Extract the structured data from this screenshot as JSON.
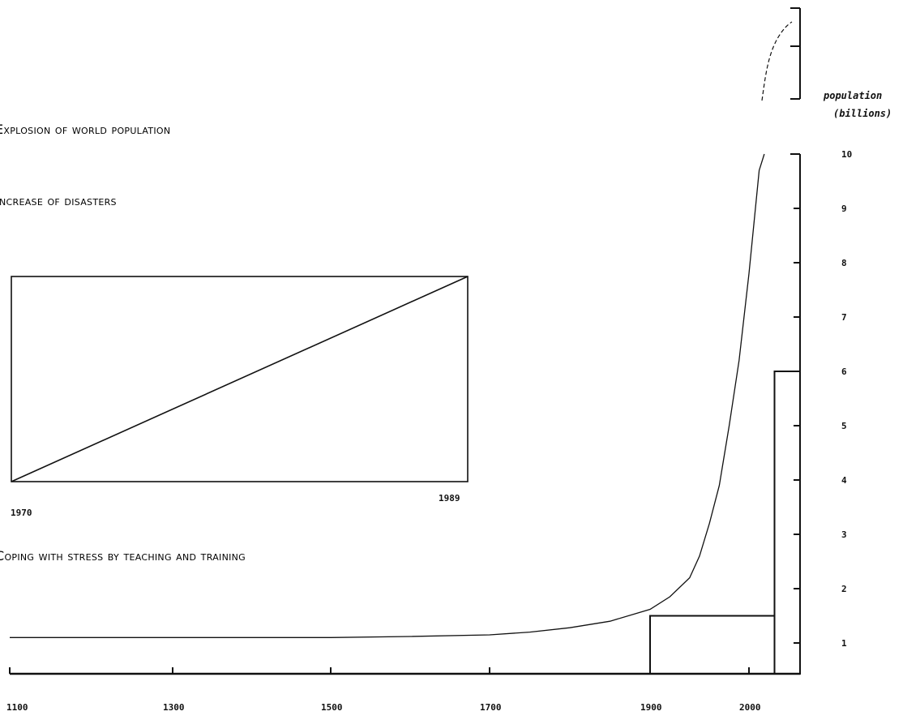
{
  "headings": {
    "explosion": "Explosion of world population",
    "disasters": "Increase of disasters",
    "coping": "Coping with stress by teaching and training"
  },
  "chart_data": [
    {
      "type": "line",
      "title": "Explosion of world population",
      "ylabel": [
        "population",
        "(billions)"
      ],
      "x_ticks": [
        1100,
        1300,
        1500,
        1700,
        1900,
        2000
      ],
      "y_ticks": [
        1,
        2,
        3,
        4,
        5,
        6,
        7,
        8,
        9,
        10
      ],
      "y_scale_compressed_above": 10,
      "series": [
        {
          "x": [
            1100,
            1300,
            1500,
            1600,
            1700,
            1750,
            1800,
            1850,
            1900,
            1920,
            1940,
            1950,
            1960,
            1970,
            1980,
            1990,
            2000,
            2010,
            2015
          ],
          "values": [
            1.1,
            1.1,
            1.1,
            1.12,
            1.15,
            1.2,
            1.28,
            1.4,
            1.62,
            1.85,
            2.2,
            2.6,
            3.2,
            3.9,
            5.0,
            6.2,
            7.8,
            9.7,
            10.0
          ]
        }
      ],
      "bars": [
        {
          "x_start": 1900,
          "x_end": 2025,
          "value": 1.5
        },
        {
          "x_start": 2025,
          "x_end": 2050,
          "value": 6
        }
      ]
    },
    {
      "type": "line",
      "title": "Increase of disasters",
      "x_ticks": [
        1970,
        1989
      ],
      "series": [
        {
          "x": [
            1970,
            1989
          ],
          "values": [
            0,
            1
          ]
        }
      ]
    }
  ],
  "colors": {
    "ink": "#111111",
    "background": "#ffffff"
  }
}
